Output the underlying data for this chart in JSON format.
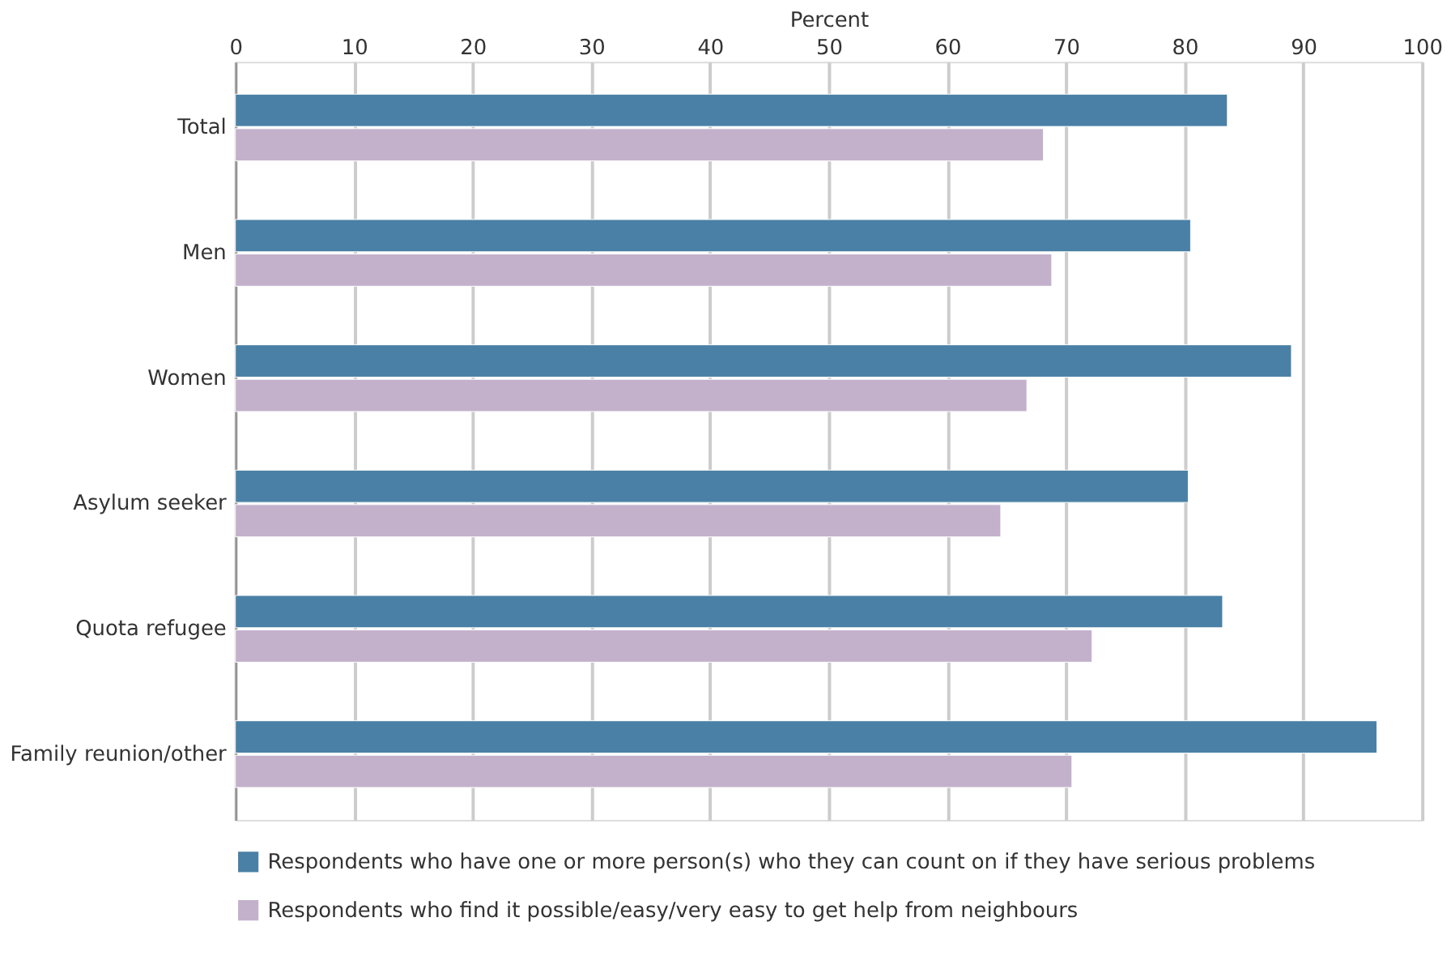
{
  "chart_data": {
    "type": "bar",
    "orientation": "horizontal",
    "xlabel": "Percent",
    "categories": [
      "Total",
      "Men",
      "Women",
      "Asylum seeker",
      "Quota refugee",
      "Family reunion/other"
    ],
    "series": [
      {
        "name": "Respondents who have one or more person(s) who they can count on if they have serious problems",
        "color": "#4a80a5",
        "values": [
          83.6,
          80.5,
          89.0,
          80.3,
          83.2,
          96.2
        ]
      },
      {
        "name": "Respondents who find it possible/easy/very easy to get help from neighbours",
        "color": "#c3b1cc",
        "values": [
          68.1,
          68.8,
          66.7,
          64.5,
          72.2,
          70.5
        ]
      }
    ],
    "xlim": [
      0,
      100
    ],
    "xticks": [
      0,
      10,
      20,
      30,
      40,
      50,
      60,
      70,
      80,
      90,
      100
    ],
    "grid": "x",
    "legend": "bottom"
  }
}
